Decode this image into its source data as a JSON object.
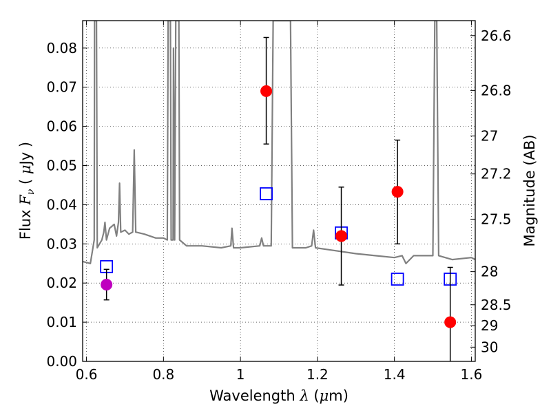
{
  "chart_data": {
    "type": "scatter",
    "title": "",
    "xlabel": {
      "prefix": "Wavelength",
      "symbol": "λ",
      "unit_open": "(",
      "unit_mu": "μ",
      "unit_rest": "m)"
    },
    "ylabel": {
      "prefix": "Flux",
      "symbol": "F",
      "sub": "ν",
      "unit_open": "(",
      "unit_mu": "μ",
      "unit_rest": "Jy )"
    },
    "y2label": "Magnitude (AB)",
    "xlim": [
      0.59,
      1.61
    ],
    "ylim": [
      0.0,
      0.087
    ],
    "grid": true,
    "x_ticks": [
      0.6,
      0.8,
      1.0,
      1.2,
      1.4,
      1.6
    ],
    "x_tick_labels": [
      "0.6",
      "0.8",
      "1",
      "1.2",
      "1.4",
      "1.6"
    ],
    "y_ticks": [
      0.0,
      0.01,
      0.02,
      0.03,
      0.04,
      0.05,
      0.06,
      0.07,
      0.08
    ],
    "y_tick_labels": [
      "0.00",
      "0.01",
      "0.02",
      "0.03",
      "0.04",
      "0.05",
      "0.06",
      "0.07",
      "0.08"
    ],
    "y2_ticks": [
      {
        "label": "26.6",
        "mag": 26.6
      },
      {
        "label": "26.8",
        "mag": 26.8
      },
      {
        "label": "27",
        "mag": 27.0
      },
      {
        "label": "27.2",
        "mag": 27.2
      },
      {
        "label": "27.5",
        "mag": 27.5
      },
      {
        "label": "28",
        "mag": 28.0
      },
      {
        "label": "28.5",
        "mag": 28.5
      },
      {
        "label": "29",
        "mag": 29.0
      },
      {
        "label": "30",
        "mag": 30.0
      }
    ],
    "series": [
      {
        "kind": "line",
        "color": "#808080",
        "points": [
          [
            0.59,
            0.0255
          ],
          [
            0.61,
            0.025
          ],
          [
            0.62,
            0.031
          ],
          [
            0.621,
            0.087
          ],
          [
            0.626,
            0.087
          ],
          [
            0.628,
            0.029
          ],
          [
            0.64,
            0.031
          ],
          [
            0.645,
            0.033
          ],
          [
            0.648,
            0.0355
          ],
          [
            0.652,
            0.031
          ],
          [
            0.66,
            0.034
          ],
          [
            0.672,
            0.035
          ],
          [
            0.678,
            0.032
          ],
          [
            0.683,
            0.0355
          ],
          [
            0.686,
            0.0455
          ],
          [
            0.689,
            0.033
          ],
          [
            0.7,
            0.0335
          ],
          [
            0.71,
            0.0325
          ],
          [
            0.72,
            0.033
          ],
          [
            0.724,
            0.054
          ],
          [
            0.728,
            0.033
          ],
          [
            0.75,
            0.0325
          ],
          [
            0.78,
            0.0315
          ],
          [
            0.8,
            0.0315
          ],
          [
            0.81,
            0.031
          ],
          [
            0.812,
            0.087
          ],
          [
            0.818,
            0.087
          ],
          [
            0.82,
            0.031
          ],
          [
            0.825,
            0.031
          ],
          [
            0.826,
            0.08
          ],
          [
            0.829,
            0.031
          ],
          [
            0.832,
            0.087
          ],
          [
            0.84,
            0.087
          ],
          [
            0.842,
            0.031
          ],
          [
            0.86,
            0.0295
          ],
          [
            0.9,
            0.0295
          ],
          [
            0.95,
            0.029
          ],
          [
            0.975,
            0.0295
          ],
          [
            0.978,
            0.034
          ],
          [
            0.982,
            0.029
          ],
          [
            1.0,
            0.029
          ],
          [
            1.05,
            0.0295
          ],
          [
            1.055,
            0.0315
          ],
          [
            1.06,
            0.0295
          ],
          [
            1.08,
            0.0295
          ],
          [
            1.085,
            0.087
          ],
          [
            1.13,
            0.087
          ],
          [
            1.135,
            0.029
          ],
          [
            1.17,
            0.029
          ],
          [
            1.185,
            0.0295
          ],
          [
            1.19,
            0.0335
          ],
          [
            1.195,
            0.029
          ],
          [
            1.23,
            0.0285
          ],
          [
            1.3,
            0.0275
          ],
          [
            1.35,
            0.027
          ],
          [
            1.4,
            0.0265
          ],
          [
            1.42,
            0.027
          ],
          [
            1.43,
            0.025
          ],
          [
            1.45,
            0.027
          ],
          [
            1.48,
            0.027
          ],
          [
            1.5,
            0.027
          ],
          [
            1.505,
            0.087
          ],
          [
            1.51,
            0.087
          ],
          [
            1.515,
            0.027
          ],
          [
            1.55,
            0.026
          ],
          [
            1.6,
            0.0265
          ],
          [
            1.61,
            0.026
          ]
        ]
      },
      {
        "kind": "squares",
        "color": "#0000ff",
        "points": [
          [
            0.652,
            0.0242
          ],
          [
            1.067,
            0.0428
          ],
          [
            1.262,
            0.0328
          ],
          [
            1.408,
            0.021
          ],
          [
            1.545,
            0.021
          ]
        ]
      },
      {
        "kind": "errorbar",
        "color": "#ff0000",
        "points": [
          {
            "x": 1.067,
            "y": 0.069,
            "lo": 0.0555,
            "hi": 0.0827
          },
          {
            "x": 1.262,
            "y": 0.032,
            "lo": 0.0195,
            "hi": 0.0445
          },
          {
            "x": 1.408,
            "y": 0.0433,
            "lo": 0.03,
            "hi": 0.0565
          },
          {
            "x": 1.545,
            "y": 0.01,
            "lo": 0.0,
            "hi": 0.024
          }
        ]
      },
      {
        "kind": "errorbar",
        "color": "#bf00bf",
        "points": [
          {
            "x": 0.652,
            "y": 0.0196,
            "lo": 0.0157,
            "hi": 0.0235
          }
        ]
      }
    ]
  }
}
